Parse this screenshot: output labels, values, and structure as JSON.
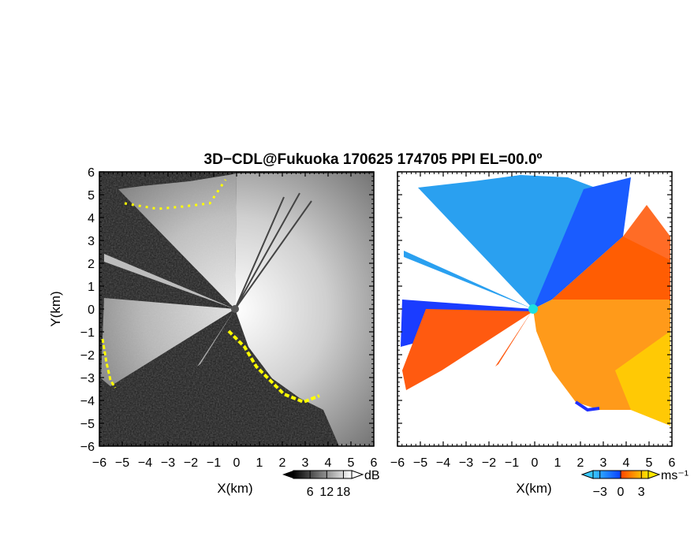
{
  "title": "3D−CDL@Fukuoka 170625 174705 PPI EL=00.0º",
  "chart_data": [
    {
      "type": "heatmap",
      "panel": "reflectivity",
      "xlabel": "X(km)",
      "ylabel": "Y(km)",
      "xlim": [
        -6,
        6
      ],
      "ylim": [
        -6,
        6
      ],
      "xticks": [
        "−6",
        "−5",
        "−4",
        "−3",
        "−2",
        "−1",
        "0",
        "1",
        "2",
        "3",
        "4",
        "5",
        "6"
      ],
      "yticks": [
        "−6",
        "−5",
        "−4",
        "−3",
        "−2",
        "−1",
        "0",
        "1",
        "2",
        "3",
        "4",
        "5",
        "6"
      ],
      "grid": false,
      "colorbar": {
        "unit": "dB",
        "ticks": [
          "6",
          "12",
          "18"
        ],
        "range": [
          0,
          21
        ],
        "colors": [
          "#000000",
          "#ffffff"
        ]
      },
      "highlight_color": "#ffff00"
    },
    {
      "type": "heatmap",
      "panel": "radial_velocity",
      "xlabel": "X(km)",
      "ylabel": "",
      "xlim": [
        -6,
        6
      ],
      "ylim": [
        -6,
        6
      ],
      "xticks": [
        "−6",
        "−5",
        "−4",
        "−3",
        "−2",
        "−1",
        "0",
        "1",
        "2",
        "3",
        "4",
        "5",
        "6"
      ],
      "yticks": [],
      "grid": false,
      "colorbar": {
        "unit": "ms⁻¹",
        "ticks": [
          "−3",
          "0",
          "3"
        ],
        "range": [
          -4,
          4
        ],
        "colors": [
          "#38c8ff",
          "#0a46ff",
          "#ff4a00",
          "#ffe800"
        ]
      },
      "radar_marker_color": "#1ce0e0"
    }
  ]
}
